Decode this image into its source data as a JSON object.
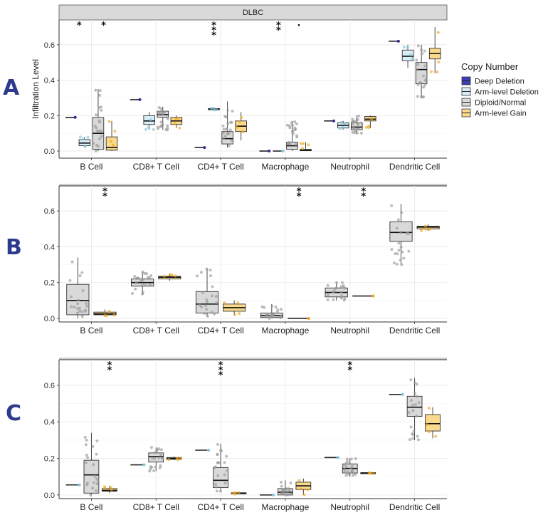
{
  "figure": {
    "strip_title": "DLBC",
    "y_axis_title": "Infiltration Level",
    "legend": {
      "title": "Copy Number",
      "entries": [
        {
          "label": "Deep Deletion",
          "color": "#3b3fb8"
        },
        {
          "label": "Arm-level Deletion",
          "color": "#d9eef7"
        },
        {
          "label": "Diploid/Normal",
          "color": "#d9d9d9"
        },
        {
          "label": "Arm-level Gain",
          "color": "#f9d98c"
        }
      ]
    }
  },
  "chart_data": [
    {
      "type": "box",
      "panel": "A",
      "title": "DLBC",
      "ylabel": "Infiltration Level",
      "ylim": [
        -0.04,
        0.74
      ],
      "yticks": [
        "0.0",
        "0.2",
        "0.4",
        "0.6"
      ],
      "grid": true,
      "categories": [
        "B Cell",
        "CD8+ T Cell",
        "CD4+ T Cell",
        "Macrophage",
        "Neutrophil",
        "Dendritic Cell"
      ],
      "groups": [
        "Deep Deletion",
        "Arm-level Deletion",
        "Diploid/Normal",
        "Arm-level Gain"
      ],
      "boxes": [
        [
          [
            0.19,
            0.19,
            0.19,
            0.19,
            0.19
          ],
          [
            0.02,
            0.03,
            0.045,
            0.065,
            0.08
          ],
          [
            0.0,
            0.01,
            0.1,
            0.19,
            0.35
          ],
          [
            0.0,
            0.005,
            0.02,
            0.08,
            0.17
          ]
        ],
        [
          [
            0.29,
            0.29,
            0.29,
            0.29,
            0.29
          ],
          [
            0.12,
            0.15,
            0.17,
            0.2,
            0.22
          ],
          [
            0.12,
            0.19,
            0.205,
            0.225,
            0.25
          ],
          [
            0.13,
            0.15,
            0.17,
            0.19,
            0.2
          ]
        ],
        [
          [
            0.02,
            0.02,
            0.02,
            0.02,
            0.02
          ],
          [
            0.23,
            0.233,
            0.237,
            0.24,
            0.245
          ],
          [
            0.02,
            0.04,
            0.07,
            0.11,
            0.28
          ],
          [
            0.06,
            0.11,
            0.14,
            0.17,
            0.22
          ]
        ],
        [
          [
            0.0,
            0.0,
            0.0,
            0.0,
            0.0
          ],
          [
            0.0,
            0.0,
            0.0,
            0.0,
            0.0
          ],
          [
            0.0,
            0.01,
            0.03,
            0.05,
            0.17
          ],
          [
            0.0,
            0.002,
            0.004,
            0.01,
            0.05
          ]
        ],
        [
          [
            0.17,
            0.17,
            0.17,
            0.17,
            0.17
          ],
          [
            0.12,
            0.13,
            0.145,
            0.16,
            0.17
          ],
          [
            0.1,
            0.12,
            0.135,
            0.16,
            0.2
          ],
          [
            0.13,
            0.17,
            0.18,
            0.195,
            0.2
          ]
        ],
        [
          [
            0.62,
            0.62,
            0.62,
            0.62,
            0.62
          ],
          [
            0.47,
            0.51,
            0.535,
            0.57,
            0.6
          ],
          [
            0.3,
            0.38,
            0.46,
            0.5,
            0.6
          ],
          [
            0.44,
            0.52,
            0.55,
            0.58,
            0.7
          ]
        ]
      ],
      "stars": [
        {
          "category": "B Cell",
          "slot": 1.1,
          "text": "*"
        },
        {
          "category": "B Cell",
          "slot": 2.9,
          "text": "*"
        },
        {
          "category": "CD4+ T Cell",
          "slot": 1.5,
          "text": "* * *"
        },
        {
          "category": "Macrophage",
          "slot": 1.5,
          "text": "* *"
        },
        {
          "category": "Macrophage",
          "slot": 3.0,
          "text": "·"
        }
      ]
    },
    {
      "type": "box",
      "panel": "B",
      "ylim": [
        -0.02,
        0.74
      ],
      "yticks": [
        "0.0",
        "0.2",
        "0.4",
        "0.6"
      ],
      "grid": true,
      "categories": [
        "B Cell",
        "CD8+ T Cell",
        "CD4+ T Cell",
        "Macrophage",
        "Neutrophil",
        "Dendritic Cell"
      ],
      "groups": [
        "Diploid/Normal",
        "Arm-level Gain"
      ],
      "boxes": [
        [
          [
            0.0,
            0.02,
            0.1,
            0.19,
            0.34
          ],
          [
            0.01,
            0.02,
            0.025,
            0.035,
            0.05
          ]
        ],
        [
          [
            0.13,
            0.18,
            0.2,
            0.22,
            0.26
          ],
          [
            0.21,
            0.22,
            0.23,
            0.235,
            0.245
          ]
        ],
        [
          [
            0.01,
            0.03,
            0.08,
            0.15,
            0.28
          ],
          [
            0.02,
            0.04,
            0.06,
            0.08,
            0.1
          ]
        ],
        [
          [
            0.0,
            0.005,
            0.015,
            0.03,
            0.08
          ],
          [
            0.0,
            0.0,
            0.0,
            0.0,
            0.0
          ]
        ],
        [
          [
            0.1,
            0.12,
            0.145,
            0.17,
            0.2
          ],
          [
            0.125,
            0.125,
            0.125,
            0.125,
            0.125
          ]
        ],
        [
          [
            0.3,
            0.43,
            0.48,
            0.54,
            0.64
          ],
          [
            0.49,
            0.5,
            0.51,
            0.515,
            0.525
          ]
        ]
      ],
      "stars": [
        {
          "category": "B Cell",
          "slot": 1.5,
          "text": "* *"
        },
        {
          "category": "Macrophage",
          "slot": 1.5,
          "text": "* *"
        },
        {
          "category": "Neutrophil",
          "slot": 1.5,
          "text": "* *"
        }
      ]
    },
    {
      "type": "box",
      "panel": "C",
      "ylim": [
        -0.02,
        0.74
      ],
      "yticks": [
        "0.0",
        "0.2",
        "0.4",
        "0.6"
      ],
      "grid": true,
      "categories": [
        "B Cell",
        "CD8+ T Cell",
        "CD4+ T Cell",
        "Macrophage",
        "Neutrophil",
        "Dendritic Cell"
      ],
      "groups": [
        "Arm-level Deletion",
        "Diploid/Normal",
        "Arm-level Gain"
      ],
      "boxes": [
        [
          [
            0.055,
            0.055,
            0.055,
            0.055,
            0.055
          ],
          [
            0.0,
            0.01,
            0.11,
            0.19,
            0.34
          ],
          [
            0.01,
            0.02,
            0.025,
            0.035,
            0.05
          ]
        ],
        [
          [
            0.165,
            0.165,
            0.165,
            0.165,
            0.165
          ],
          [
            0.13,
            0.18,
            0.21,
            0.23,
            0.26
          ],
          [
            0.19,
            0.195,
            0.2,
            0.205,
            0.21
          ]
        ],
        [
          [
            0.245,
            0.245,
            0.245,
            0.245,
            0.245
          ],
          [
            0.02,
            0.04,
            0.08,
            0.15,
            0.28
          ],
          [
            0.005,
            0.008,
            0.01,
            0.012,
            0.015
          ]
        ],
        [
          [
            0.0,
            0.0,
            0.0,
            0.0,
            0.0
          ],
          [
            0.0,
            0.0,
            0.015,
            0.035,
            0.08
          ],
          [
            0.0,
            0.03,
            0.05,
            0.07,
            0.09
          ]
        ],
        [
          [
            0.205,
            0.205,
            0.205,
            0.205,
            0.205
          ],
          [
            0.1,
            0.12,
            0.145,
            0.17,
            0.2
          ],
          [
            0.115,
            0.117,
            0.12,
            0.122,
            0.125
          ]
        ],
        [
          [
            0.55,
            0.55,
            0.55,
            0.55,
            0.55
          ],
          [
            0.3,
            0.43,
            0.48,
            0.54,
            0.64
          ],
          [
            0.31,
            0.35,
            0.39,
            0.44,
            0.48
          ]
        ]
      ],
      "stars": [
        {
          "category": "B Cell",
          "slot": 2.5,
          "text": "* *"
        },
        {
          "category": "CD4+ T Cell",
          "slot": 1.5,
          "text": "* * *"
        },
        {
          "category": "Neutrophil",
          "slot": 1.5,
          "text": "* *"
        }
      ]
    }
  ]
}
